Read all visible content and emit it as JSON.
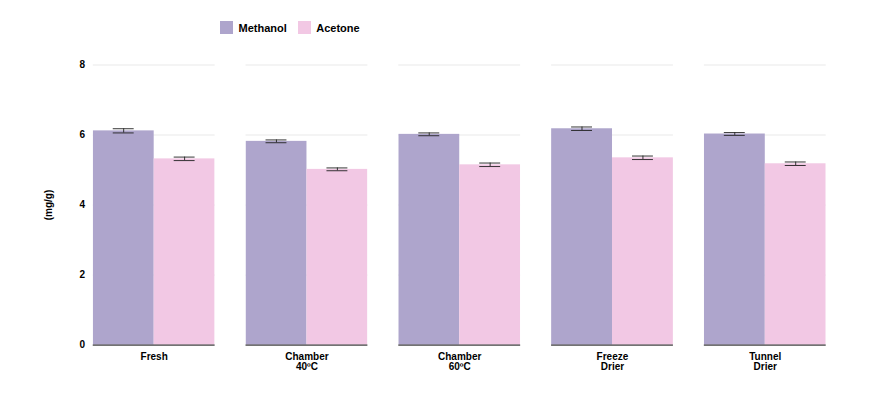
{
  "chart_data": {
    "type": "bar",
    "categories": [
      "Fresh",
      "Chamber\n40ºC",
      "Chamber\n60ºC",
      "Freeze\nDrier",
      "Tunnel\nDrier"
    ],
    "series": [
      {
        "name": "Methanol",
        "color": "#AEA5CC",
        "values": [
          6.12,
          5.82,
          6.02,
          6.18,
          6.03
        ],
        "errors": [
          0.06,
          0.04,
          0.04,
          0.05,
          0.04
        ]
      },
      {
        "name": "Acetone",
        "color": "#F2C8E4",
        "values": [
          5.32,
          5.02,
          5.15,
          5.35,
          5.18
        ],
        "errors": [
          0.05,
          0.04,
          0.05,
          0.05,
          0.05
        ]
      }
    ],
    "ylabel": "(mg/g)",
    "ylim": [
      0,
      8
    ],
    "yticks": [
      0,
      2,
      4,
      6,
      8
    ],
    "grid": true,
    "legend": "upper left"
  }
}
